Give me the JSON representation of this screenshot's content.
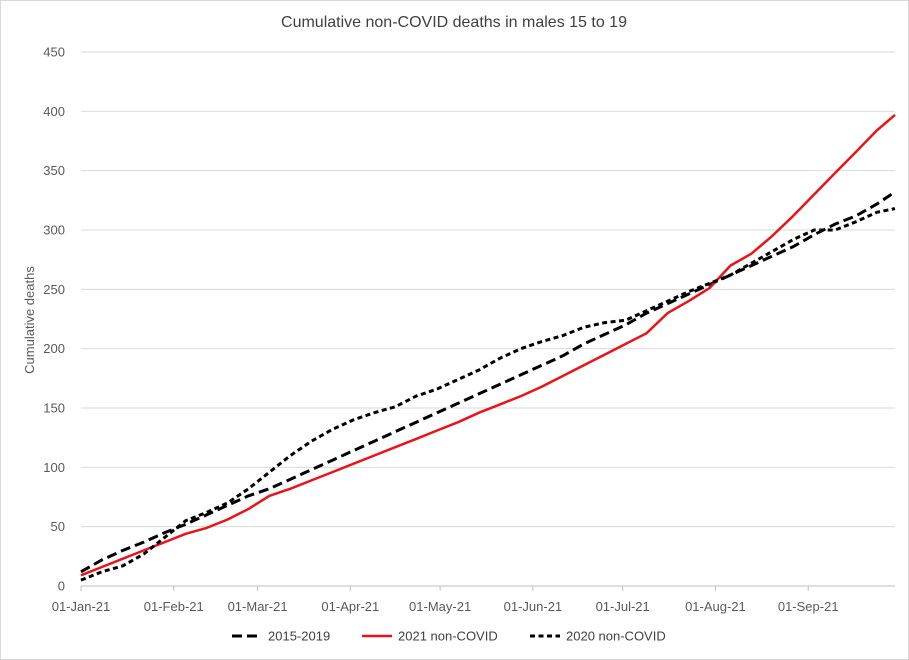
{
  "chart_data": {
    "type": "line",
    "title": "Cumulative non-COVID deaths in males 15 to 19",
    "xlabel": "",
    "ylabel": "Cumulative deaths",
    "ylim": [
      0,
      450
    ],
    "yticks": [
      0,
      50,
      100,
      150,
      200,
      250,
      300,
      350,
      400,
      450
    ],
    "xlim": [
      "2021-01-01",
      "2021-09-30"
    ],
    "xticks": [
      "01-Jan-21",
      "01-Feb-21",
      "01-Mar-21",
      "01-Apr-21",
      "01-May-21",
      "01-Jun-21",
      "01-Jul-21",
      "01-Aug-21",
      "01-Sep-21"
    ],
    "grid": "horizontal",
    "legend_position": "bottom",
    "series": [
      {
        "name": "2015-2019",
        "color": "#000000",
        "style": "dashed",
        "x": [
          "2021-01-01",
          "2021-01-08",
          "2021-01-15",
          "2021-01-22",
          "2021-01-29",
          "2021-02-05",
          "2021-02-12",
          "2021-02-19",
          "2021-02-26",
          "2021-03-05",
          "2021-03-12",
          "2021-03-19",
          "2021-03-26",
          "2021-04-02",
          "2021-04-09",
          "2021-04-16",
          "2021-04-23",
          "2021-04-30",
          "2021-05-07",
          "2021-05-14",
          "2021-05-21",
          "2021-05-28",
          "2021-06-04",
          "2021-06-11",
          "2021-06-18",
          "2021-06-25",
          "2021-07-02",
          "2021-07-09",
          "2021-07-16",
          "2021-07-23",
          "2021-07-30",
          "2021-08-06",
          "2021-08-13",
          "2021-08-20",
          "2021-08-27",
          "2021-09-03",
          "2021-09-10",
          "2021-09-17",
          "2021-09-24",
          "2021-09-30"
        ],
        "values": [
          12,
          22,
          30,
          37,
          45,
          52,
          60,
          68,
          76,
          82,
          90,
          98,
          106,
          114,
          122,
          130,
          138,
          146,
          154,
          162,
          170,
          178,
          186,
          194,
          204,
          212,
          220,
          230,
          238,
          246,
          254,
          262,
          270,
          278,
          286,
          296,
          305,
          312,
          322,
          332
        ]
      },
      {
        "name": "2021 non-COVID",
        "color": "#e8141a",
        "style": "solid",
        "x": [
          "2021-01-01",
          "2021-01-08",
          "2021-01-15",
          "2021-01-22",
          "2021-01-29",
          "2021-02-05",
          "2021-02-12",
          "2021-02-19",
          "2021-02-26",
          "2021-03-05",
          "2021-03-12",
          "2021-03-19",
          "2021-03-26",
          "2021-04-02",
          "2021-04-09",
          "2021-04-16",
          "2021-04-23",
          "2021-04-30",
          "2021-05-07",
          "2021-05-14",
          "2021-05-21",
          "2021-05-28",
          "2021-06-04",
          "2021-06-11",
          "2021-06-18",
          "2021-06-25",
          "2021-07-02",
          "2021-07-09",
          "2021-07-16",
          "2021-07-23",
          "2021-07-30",
          "2021-08-06",
          "2021-08-13",
          "2021-08-20",
          "2021-08-27",
          "2021-09-03",
          "2021-09-10",
          "2021-09-17",
          "2021-09-24",
          "2021-09-30"
        ],
        "values": [
          9,
          16,
          23,
          30,
          37,
          44,
          49,
          56,
          65,
          76,
          82,
          89,
          96,
          103,
          110,
          117,
          124,
          131,
          138,
          146,
          153,
          160,
          168,
          177,
          186,
          195,
          204,
          213,
          230,
          240,
          251,
          270,
          280,
          295,
          312,
          330,
          348,
          366,
          384,
          397
        ]
      },
      {
        "name": "2020 non-COVID",
        "color": "#000000",
        "style": "dotted",
        "x": [
          "2021-01-01",
          "2021-01-08",
          "2021-01-15",
          "2021-01-22",
          "2021-01-29",
          "2021-02-05",
          "2021-02-12",
          "2021-02-19",
          "2021-02-26",
          "2021-03-05",
          "2021-03-12",
          "2021-03-19",
          "2021-03-26",
          "2021-04-02",
          "2021-04-09",
          "2021-04-16",
          "2021-04-23",
          "2021-04-30",
          "2021-05-07",
          "2021-05-14",
          "2021-05-21",
          "2021-05-28",
          "2021-06-04",
          "2021-06-11",
          "2021-06-18",
          "2021-06-25",
          "2021-07-02",
          "2021-07-09",
          "2021-07-16",
          "2021-07-23",
          "2021-07-30",
          "2021-08-06",
          "2021-08-13",
          "2021-08-20",
          "2021-08-27",
          "2021-09-03",
          "2021-09-10",
          "2021-09-17",
          "2021-09-24",
          "2021-09-30"
        ],
        "values": [
          5,
          12,
          17,
          27,
          41,
          55,
          62,
          70,
          82,
          96,
          110,
          122,
          132,
          140,
          146,
          151,
          160,
          166,
          174,
          182,
          192,
          200,
          206,
          211,
          218,
          222,
          224,
          232,
          240,
          248,
          255,
          262,
          272,
          282,
          292,
          300,
          300,
          307,
          315,
          318
        ]
      }
    ]
  }
}
